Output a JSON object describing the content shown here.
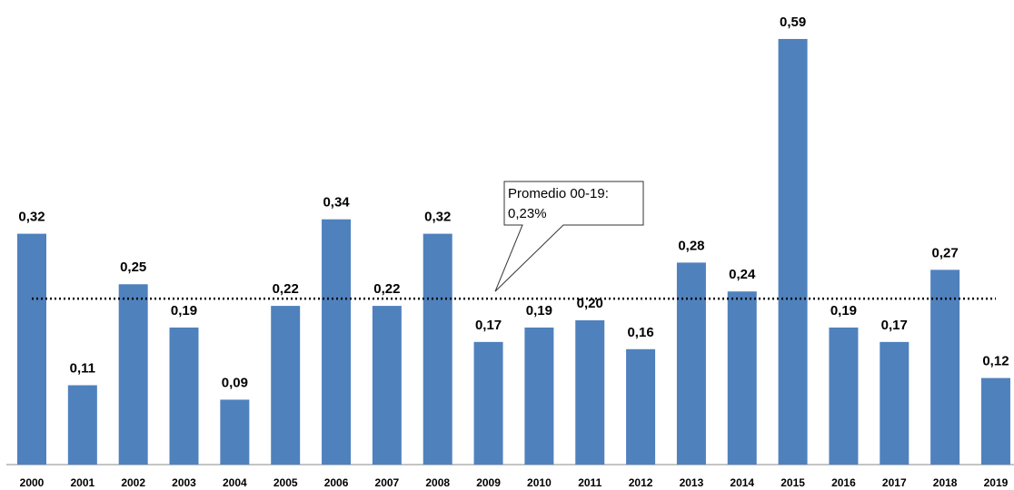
{
  "chart_data": {
    "type": "bar",
    "categories": [
      "2000",
      "2001",
      "2002",
      "2003",
      "2004",
      "2005",
      "2006",
      "2007",
      "2008",
      "2009",
      "2010",
      "2011",
      "2012",
      "2013",
      "2014",
      "2015",
      "2016",
      "2017",
      "2018",
      "2019"
    ],
    "values": [
      0.32,
      0.11,
      0.25,
      0.19,
      0.09,
      0.22,
      0.34,
      0.22,
      0.32,
      0.17,
      0.19,
      0.2,
      0.16,
      0.28,
      0.24,
      0.59,
      0.19,
      0.17,
      0.27,
      0.12
    ],
    "value_labels": [
      "0,32",
      "0,11",
      "0,25",
      "0,19",
      "0,09",
      "0,22",
      "0,34",
      "0,22",
      "0,32",
      "0,17",
      "0,19",
      "0,20",
      "0,16",
      "0,28",
      "0,24",
      "0,59",
      "0,19",
      "0,17",
      "0,27",
      "0,12"
    ],
    "color": "#4f81bd",
    "ylim": [
      0,
      0.6
    ],
    "average": {
      "value": 0.23,
      "label": "Promedio 00-19:",
      "value_label": "0,23%"
    }
  }
}
